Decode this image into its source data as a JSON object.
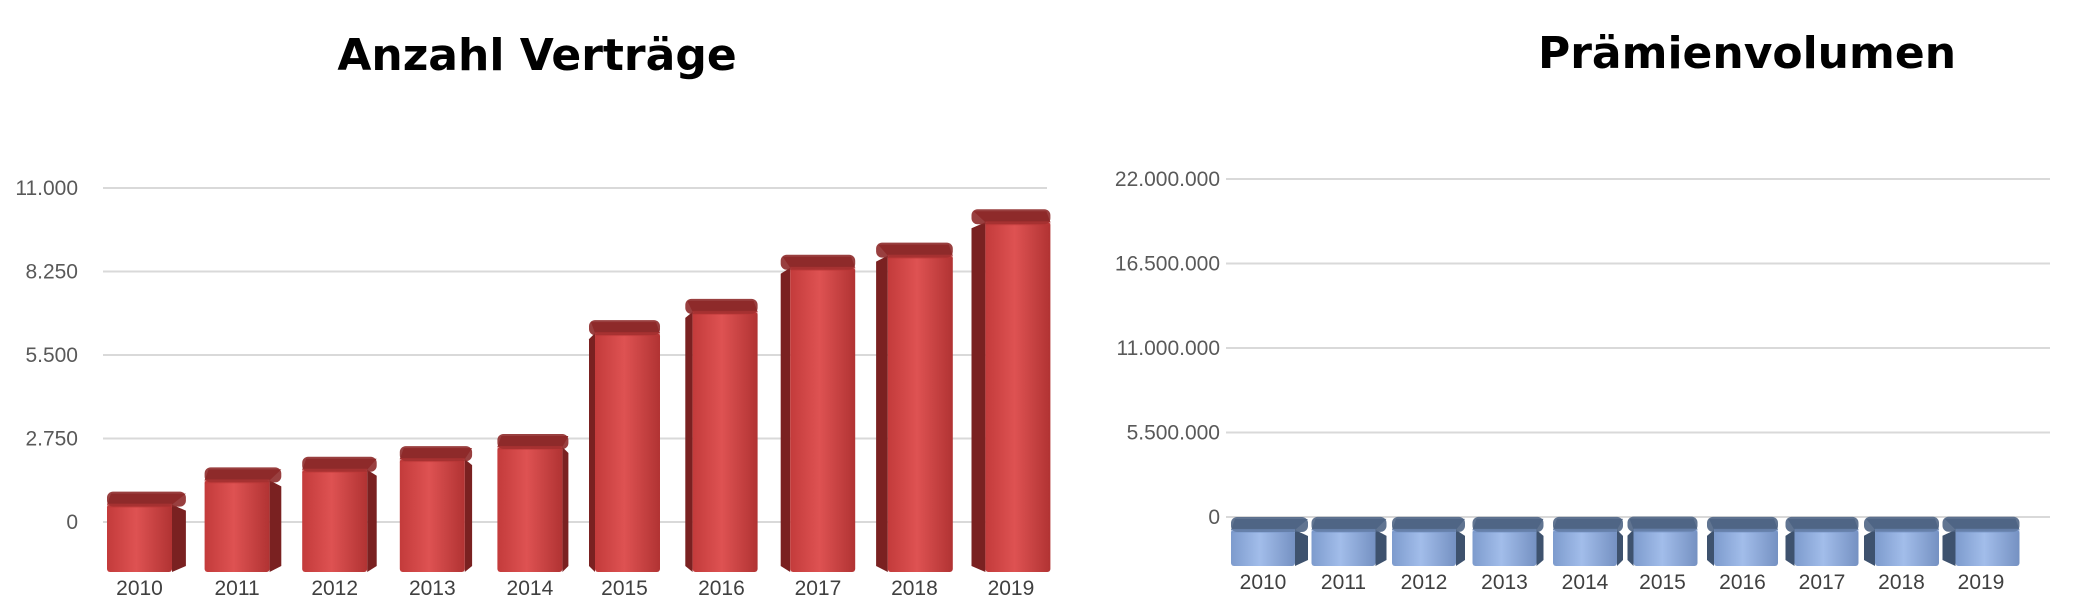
{
  "chart_data": [
    {
      "type": "bar",
      "title": "Anzahl Verträge",
      "xlabel": "",
      "ylabel": "",
      "categories": [
        "2010",
        "2011",
        "2012",
        "2013",
        "2014",
        "2015",
        "2016",
        "2017",
        "2018",
        "2019"
      ],
      "values": [
        1000,
        1800,
        2150,
        2500,
        2900,
        6650,
        7350,
        8800,
        9200,
        10300
      ],
      "ylim": [
        0,
        11000
      ],
      "yticks": [
        0,
        2750,
        5500,
        8250,
        11000
      ],
      "ytick_labels": [
        "0",
        "2.750",
        "5.500",
        "8.250",
        "11.000"
      ],
      "grid": true,
      "legend": "none",
      "colors": {
        "front": "#d84b4b",
        "front_dark": "#b93636",
        "side": "#7a2121",
        "top": "#8e2a2a"
      }
    },
    {
      "type": "bar",
      "title": "Prämienvolumen",
      "xlabel": "",
      "ylabel": "",
      "categories": [
        "2010",
        "2011",
        "2012",
        "2013",
        "2014",
        "2015",
        "2016",
        "2017",
        "2018",
        "2019"
      ],
      "values": [
        3000,
        5000,
        7200,
        7700,
        10800,
        21800,
        10400,
        11400,
        12400,
        14200
      ],
      "ylim": [
        0,
        22000000
      ],
      "yticks": [
        0,
        5500000,
        11000000,
        16500000,
        22000000
      ],
      "ytick_labels": [
        "0",
        "5.500.000",
        "11.000.000",
        "16.500.000",
        "22.000.000"
      ],
      "grid": true,
      "legend": "none",
      "colors": {
        "front": "#93b0df",
        "front_dark": "#7896c8",
        "side": "#3e526e",
        "top": "#4f6585"
      }
    }
  ]
}
